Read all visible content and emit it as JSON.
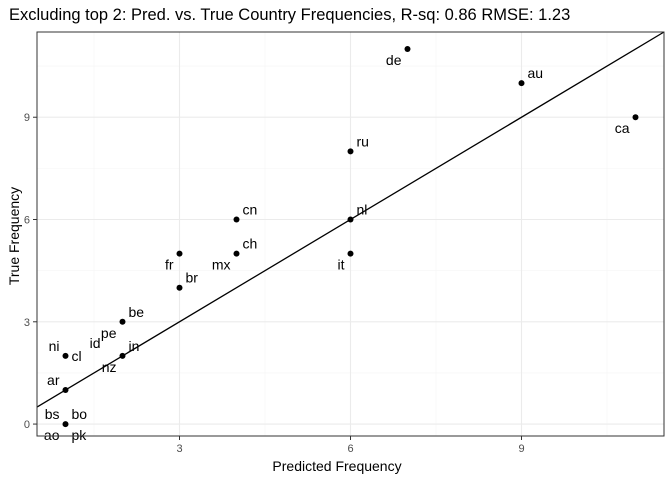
{
  "chart_data": {
    "type": "scatter",
    "title": "Excluding top 2: Pred. vs. True Country Frequencies, R-sq: 0.86 RMSE: 1.23",
    "xlabel": "Predicted Frequency",
    "ylabel": "True Frequency",
    "xlim": [
      0.5,
      11.5
    ],
    "ylim": [
      -0.35,
      11.5
    ],
    "xticks": [
      3,
      6,
      9
    ],
    "yticks": [
      0,
      3,
      6,
      9
    ],
    "grid": true,
    "reference_line": {
      "slope": 1,
      "intercept": 0
    },
    "colors": {
      "point": "#000000",
      "line": "#000000",
      "grid_major": "#ebebeb",
      "grid_minor": "#f5f5f5",
      "border": "#333333"
    },
    "points": [
      {
        "label": "de",
        "x": 7,
        "y": 11,
        "label_pos": "below-left"
      },
      {
        "label": "au",
        "x": 9,
        "y": 10,
        "label_pos": "above-right"
      },
      {
        "label": "ca",
        "x": 11,
        "y": 9,
        "label_pos": "below-left"
      },
      {
        "label": "ru",
        "x": 6,
        "y": 8,
        "label_pos": "above-right"
      },
      {
        "label": "cn",
        "x": 4,
        "y": 6,
        "label_pos": "above-right"
      },
      {
        "label": "nl",
        "x": 6,
        "y": 6,
        "label_pos": "above-right"
      },
      {
        "label": "ch",
        "x": 4,
        "y": 5,
        "label_pos": "above-right"
      },
      {
        "label": "mx",
        "x": 4,
        "y": 5,
        "label_pos": "below-left"
      },
      {
        "label": "fr",
        "x": 3,
        "y": 5,
        "label_pos": "below-left"
      },
      {
        "label": "it",
        "x": 6,
        "y": 5,
        "label_pos": "below-left"
      },
      {
        "label": "br",
        "x": 3,
        "y": 4,
        "label_pos": "above-right"
      },
      {
        "label": "be",
        "x": 2,
        "y": 3,
        "label_pos": "above-right"
      },
      {
        "label": "pe",
        "x": 2,
        "y": 3,
        "label_pos": "below-left"
      },
      {
        "label": "in",
        "x": 2,
        "y": 2,
        "label_pos": "above-right"
      },
      {
        "label": "nz",
        "x": 2,
        "y": 2,
        "label_pos": "below-left"
      },
      {
        "label": "id",
        "x": 2,
        "y": 2,
        "label_pos": "far-left-up"
      },
      {
        "label": "ni",
        "x": 1,
        "y": 2,
        "label_pos": "above-left"
      },
      {
        "label": "cl",
        "x": 1,
        "y": 2,
        "label_pos": "right"
      },
      {
        "label": "ar",
        "x": 1,
        "y": 1,
        "label_pos": "above-left"
      },
      {
        "label": "bs",
        "x": 1,
        "y": 0,
        "label_pos": "above-left"
      },
      {
        "label": "bo",
        "x": 1,
        "y": 0,
        "label_pos": "above-right"
      },
      {
        "label": "ao",
        "x": 1,
        "y": 0,
        "label_pos": "below-left"
      },
      {
        "label": "pk",
        "x": 1,
        "y": 0,
        "label_pos": "below-right"
      }
    ]
  }
}
